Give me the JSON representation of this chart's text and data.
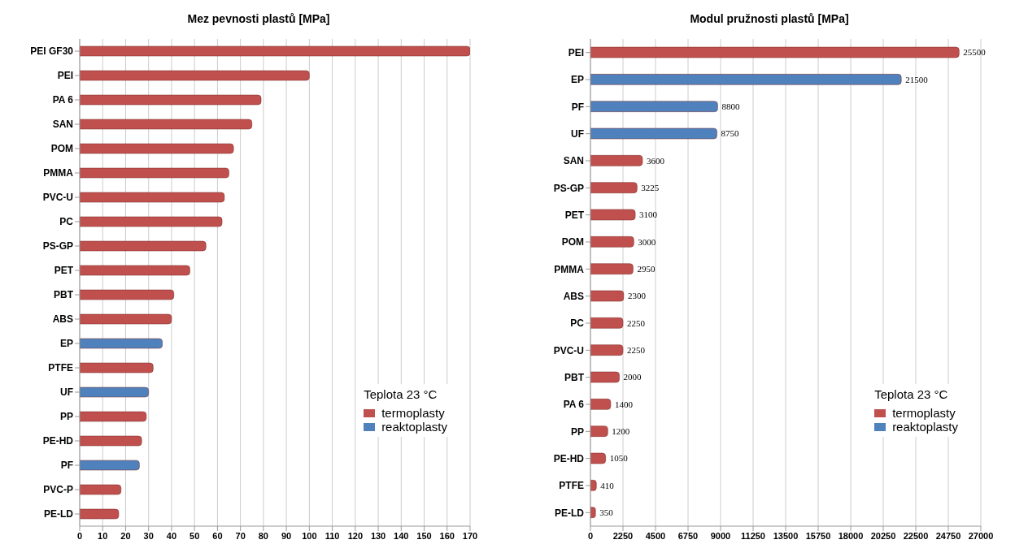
{
  "chart_data": [
    {
      "type": "bar",
      "orientation": "horizontal",
      "stacked": true,
      "title": "Mez pevnosti plastů [MPa]",
      "categories": [
        "PEI GF30",
        "PEI",
        "PA 6",
        "SAN",
        "POM",
        "PMMA",
        "PVC-U",
        "PC",
        "PS-GP",
        "PET",
        "PBT",
        "ABS",
        "EP",
        "PTFE",
        "UF",
        "PP",
        "PE-HD",
        "PF",
        "PVC-P",
        "PE-LD"
      ],
      "series": [
        {
          "name": "termoplasty",
          "color": "#c0504d",
          "values": [
            170,
            100,
            79,
            75,
            67,
            65,
            63,
            62,
            55,
            48,
            41,
            40,
            null,
            32,
            null,
            29,
            27,
            null,
            18,
            17
          ]
        },
        {
          "name": "reaktoplasty",
          "color": "#4f81bd",
          "values": [
            null,
            null,
            null,
            null,
            null,
            null,
            null,
            null,
            null,
            null,
            null,
            null,
            36,
            null,
            30,
            null,
            null,
            26,
            null,
            null
          ]
        }
      ],
      "xlim": [
        0,
        170
      ],
      "xticks": [
        0,
        10,
        20,
        30,
        40,
        50,
        60,
        70,
        80,
        90,
        100,
        110,
        120,
        130,
        140,
        150,
        160,
        170
      ],
      "grid": "x",
      "legend": "bottom right",
      "legend_title": "Teplota 23 °C"
    },
    {
      "type": "bar",
      "orientation": "horizontal",
      "stacked": true,
      "title": "Modul pružnosti plastů [MPa]",
      "categories": [
        "PEI",
        "EP",
        "PF",
        "UF",
        "SAN",
        "PS-GP",
        "PET",
        "POM",
        "PMMA",
        "ABS",
        "PC",
        "PVC-U",
        "PBT",
        "PA 6",
        "PP",
        "PE-HD",
        "PTFE",
        "PE-LD"
      ],
      "series": [
        {
          "name": "termoplasty",
          "color": "#c0504d",
          "values": [
            25500,
            null,
            null,
            null,
            3600,
            3225,
            3100,
            3000,
            2950,
            2300,
            2250,
            2250,
            2000,
            1400,
            1200,
            1050,
            410,
            350
          ]
        },
        {
          "name": "reaktoplasty",
          "color": "#4f81bd",
          "values": [
            null,
            21500,
            8800,
            8750,
            null,
            null,
            null,
            null,
            null,
            null,
            null,
            null,
            null,
            null,
            null,
            null,
            null,
            null
          ]
        }
      ],
      "xlim": [
        0,
        27000
      ],
      "xticks": [
        0,
        2250,
        4500,
        6750,
        9000,
        11250,
        13500,
        15750,
        18000,
        20250,
        22500,
        24750,
        27000
      ],
      "grid": "x",
      "legend": "bottom right",
      "legend_title": "Teplota 23 °C",
      "data_labels": true
    }
  ]
}
